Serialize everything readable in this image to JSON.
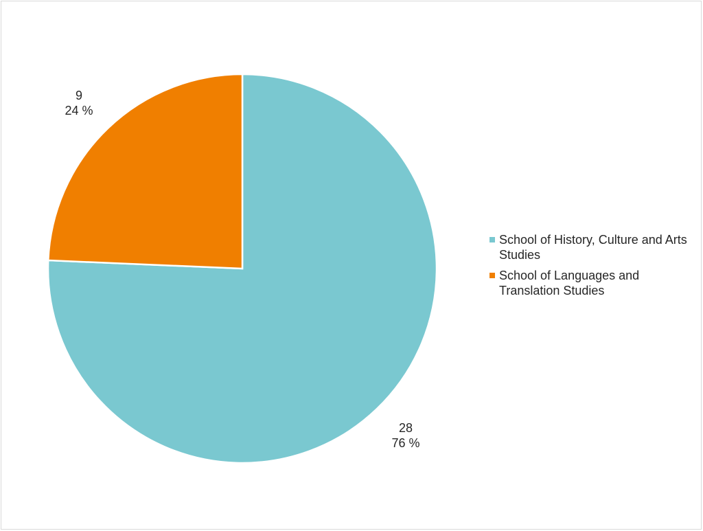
{
  "chart_data": {
    "type": "pie",
    "title": "",
    "legend_position": "right",
    "slices": [
      {
        "label": "School of History, Culture and Arts Studies",
        "value": 28,
        "percent": "76 %",
        "color": "#7ac8d0"
      },
      {
        "label": "School of Languages and Translation Studies",
        "value": 9,
        "percent": "24 %",
        "color": "#f07f00"
      }
    ]
  }
}
